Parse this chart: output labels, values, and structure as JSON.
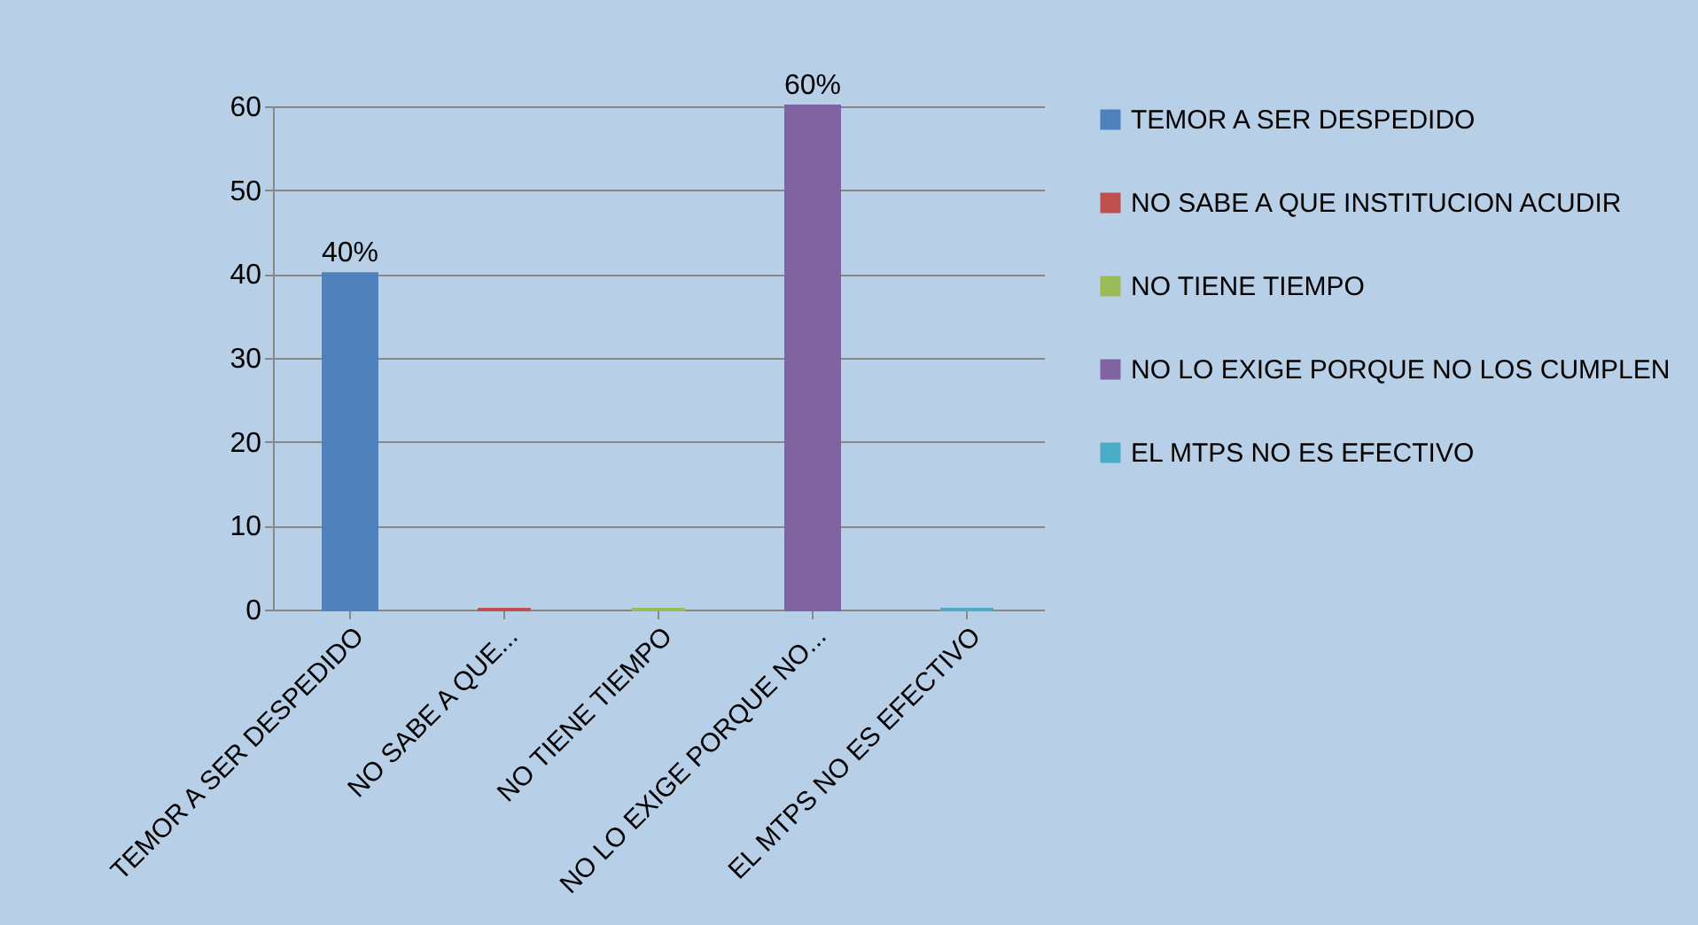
{
  "chart_data": {
    "type": "bar",
    "categories": [
      "TEMOR A SER DESPEDIDO",
      "NO SABE A QUE...",
      "NO TIENE TIEMPO",
      "NO LO EXIGE PORQUE NO...",
      "EL MTPS NO ES EFECTIVO"
    ],
    "series": [
      {
        "name": "TEMOR A SER DESPEDIDO",
        "color": "#4f81bd",
        "values": [
          40,
          null,
          null,
          null,
          null
        ],
        "value_labels": [
          "40%",
          null,
          null,
          null,
          null
        ]
      },
      {
        "name": "NO SABE A QUE INSTITUCION ACUDIR",
        "color": "#c0504d",
        "values": [
          null,
          0,
          null,
          null,
          null
        ]
      },
      {
        "name": "NO TIENE TIEMPO",
        "color": "#9bbb59",
        "values": [
          null,
          null,
          0,
          null,
          null
        ]
      },
      {
        "name": "NO LO EXIGE PORQUE NO LOS CUMPLEN",
        "color": "#8064a2",
        "values": [
          null,
          null,
          null,
          60,
          null
        ],
        "value_labels": [
          null,
          null,
          null,
          "60%",
          null
        ]
      },
      {
        "name": "EL MTPS NO ES EFECTIVO",
        "color": "#4bacc6",
        "values": [
          null,
          null,
          null,
          null,
          0
        ]
      }
    ],
    "ylim": [
      0,
      60
    ],
    "yticks": [
      0,
      10,
      20,
      30,
      40,
      50,
      60
    ],
    "grid": "y",
    "legend": "right"
  }
}
